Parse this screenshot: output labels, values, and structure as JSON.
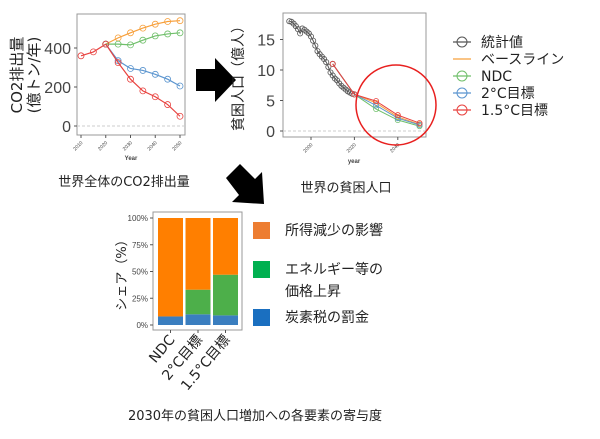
{
  "chart_data": [
    {
      "type": "line",
      "title": "世界全体のCO2排出量",
      "ylabel": "CO2排出量\n(億トン/年)",
      "ylabel_lines": [
        "CO2排出量",
        "(億トン/年)"
      ],
      "xlabel": "Year",
      "ylim": [
        0,
        560
      ],
      "xlim": [
        2010,
        2050
      ],
      "yticks": [
        "0",
        "200",
        "400"
      ],
      "ytick_values": [
        0,
        200,
        400
      ],
      "xticks": [
        "2010",
        "2020",
        "2030",
        "2040",
        "2050"
      ],
      "xtick_values": [
        2010,
        2020,
        2030,
        2040,
        2050
      ],
      "series": [
        {
          "name": "統計値",
          "color": "#e8423f",
          "x": [
            2010,
            2015,
            2020
          ],
          "y": [
            360,
            380,
            420
          ]
        },
        {
          "name": "ベースライン",
          "color": "#f7a03c",
          "x": [
            2020,
            2025,
            2030,
            2035,
            2040,
            2045,
            2050
          ],
          "y": [
            420,
            452,
            478,
            502,
            522,
            536,
            540
          ]
        },
        {
          "name": "NDC",
          "color": "#6fbf6a",
          "x": [
            2020,
            2025,
            2030,
            2035,
            2040,
            2045,
            2050
          ],
          "y": [
            420,
            420,
            416,
            440,
            462,
            472,
            478
          ]
        },
        {
          "name": "2°C目標",
          "color": "#5b95cf",
          "x": [
            2020,
            2025,
            2030,
            2035,
            2040,
            2045,
            2050
          ],
          "y": [
            420,
            335,
            295,
            285,
            265,
            240,
            205
          ]
        },
        {
          "name": "1.5°C目標",
          "color": "#e8423f",
          "x": [
            2020,
            2025,
            2030,
            2035,
            2040,
            2045,
            2050
          ],
          "y": [
            420,
            325,
            240,
            180,
            150,
            110,
            50
          ]
        }
      ]
    },
    {
      "type": "line",
      "title": "世界の貧困人口",
      "ylabel": "貧困人口（億人）",
      "xlabel": "year",
      "ylim": [
        -0.8,
        19
      ],
      "xlim": [
        1987,
        2053
      ],
      "yticks": [
        "0",
        "5",
        "10",
        "15"
      ],
      "ytick_values": [
        0,
        5,
        10,
        15
      ],
      "xticks": [
        "2000",
        "2020",
        "2040"
      ],
      "xtick_values": [
        2000,
        2020,
        2040
      ],
      "legend": [
        "統計値",
        "ベースライン",
        "NDC",
        "2°C目標",
        "1.5°C目標"
      ],
      "series": [
        {
          "name": "統計値",
          "color": "#555555",
          "x": [
            1990,
            1991,
            1992,
            1993,
            1994,
            1995,
            1996,
            1997,
            1998,
            1999,
            2000,
            2001,
            2002,
            2003,
            2004,
            2005,
            2006,
            2007,
            2008,
            2009,
            2010,
            2011,
            2012,
            2013,
            2014,
            2015,
            2016,
            2017,
            2018,
            2019
          ],
          "y": [
            18,
            17.9,
            17.6,
            17.2,
            16.7,
            16,
            16.8,
            16.6,
            16.3,
            16,
            15.5,
            14.8,
            14,
            13.1,
            12.6,
            12.2,
            11.8,
            11.3,
            10.5,
            9.6,
            9.1,
            8.6,
            8.3,
            7.8,
            7.4,
            7.1,
            6.8,
            6.5,
            6.3,
            6.1
          ]
        },
        {
          "name": "ベースライン",
          "color": "#f7a03c",
          "x": [
            2010,
            2020,
            2030,
            2040,
            2050
          ],
          "y": [
            11,
            6,
            4.6,
            2.3,
            1.1
          ]
        },
        {
          "name": "NDC",
          "color": "#6fbf6a",
          "x": [
            2010,
            2020,
            2030,
            2040,
            2050
          ],
          "y": [
            11,
            6,
            3.6,
            1.8,
            0.8
          ]
        },
        {
          "name": "2°C目標",
          "color": "#5b95cf",
          "x": [
            2010,
            2020,
            2030,
            2040,
            2050
          ],
          "y": [
            11,
            6,
            4.2,
            2.1,
            1.0
          ]
        },
        {
          "name": "1.5°C目標",
          "color": "#e8423f",
          "x": [
            2010,
            2020,
            2030,
            2040,
            2050
          ],
          "y": [
            11,
            6,
            4.9,
            2.6,
            1.3
          ]
        }
      ]
    },
    {
      "type": "bar",
      "stacked": true,
      "title": "2030年の貧困人口増加への各要素の寄与度",
      "ylabel": "シェア（%）",
      "ylim": [
        0,
        100
      ],
      "yticks": [
        "0%",
        "25%",
        "50%",
        "75%",
        "100%"
      ],
      "ytick_values": [
        0,
        25,
        50,
        75,
        100
      ],
      "categories": [
        "NDC",
        "2°C目標",
        "1.5°C目標"
      ],
      "series": [
        {
          "name": "炭素税の罰金",
          "color": "#3a7ebf",
          "legend_color": "#1a6fc0",
          "values": [
            8,
            10,
            9
          ]
        },
        {
          "name": "エネルギー等の価格上昇",
          "legend_lines": [
            "エネルギー等の",
            "価格上昇"
          ],
          "color": "#4daf4a",
          "legend_color": "#00b050",
          "values": [
            0,
            23,
            38
          ]
        },
        {
          "name": "所得減少の影響",
          "color": "#ff7f00",
          "legend_color": "#ed7d31",
          "values": [
            92,
            67,
            53
          ]
        }
      ]
    }
  ]
}
